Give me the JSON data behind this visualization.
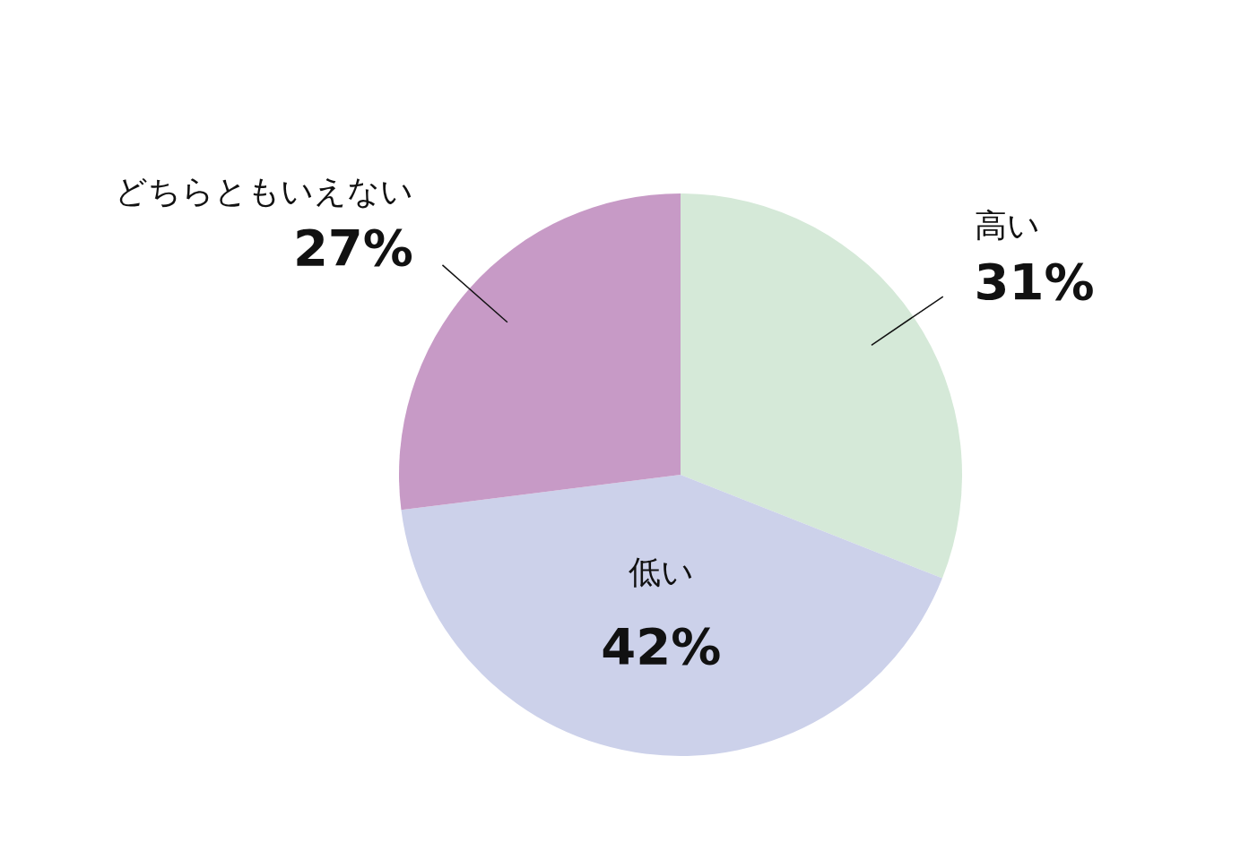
{
  "chart_data": {
    "type": "pie",
    "categories": [
      "高い",
      "低い",
      "どちらともいえない"
    ],
    "values": [
      31,
      42,
      27
    ],
    "value_labels": [
      "31%",
      "42%",
      "27%"
    ],
    "colors": [
      "#d5e9d8",
      "#ccd1ea",
      "#c79ac6"
    ]
  }
}
